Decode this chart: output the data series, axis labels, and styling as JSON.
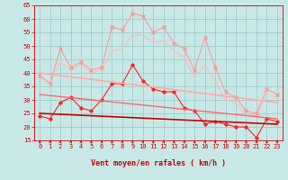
{
  "xlabel": "Vent moyen/en rafales ( km/h )",
  "xlim": [
    -0.5,
    23.5
  ],
  "ylim": [
    15,
    65
  ],
  "yticks": [
    15,
    20,
    25,
    30,
    35,
    40,
    45,
    50,
    55,
    60,
    65
  ],
  "xticks": [
    0,
    1,
    2,
    3,
    4,
    5,
    6,
    7,
    8,
    9,
    10,
    11,
    12,
    13,
    14,
    15,
    16,
    17,
    18,
    19,
    20,
    21,
    22,
    23
  ],
  "bg_color": "#c8e8e8",
  "grid_color": "#a0cccc",
  "series": [
    {
      "x": [
        0,
        1,
        2,
        3,
        4,
        5,
        6,
        7,
        8,
        9,
        10,
        11,
        12,
        13,
        14,
        15,
        16,
        17,
        18,
        19,
        20,
        21,
        22,
        23
      ],
      "y": [
        39,
        36,
        49,
        42,
        44,
        41,
        42,
        57,
        56,
        62,
        61,
        55,
        57,
        51,
        49,
        41,
        53,
        42,
        33,
        31,
        26,
        25,
        34,
        32
      ],
      "color": "#ff9999",
      "lw": 0.8,
      "marker": "x",
      "ms": 2.5,
      "zorder": 3
    },
    {
      "x": [
        0,
        1,
        2,
        3,
        4,
        5,
        6,
        7,
        8,
        9,
        10,
        11,
        12,
        13,
        14,
        15,
        16,
        17,
        18,
        19,
        20,
        21,
        22,
        23
      ],
      "y": [
        39,
        36,
        44,
        41,
        43,
        40,
        41,
        48,
        49,
        54,
        54,
        51,
        52,
        48,
        46,
        38,
        43,
        37,
        30,
        29,
        25,
        24,
        32,
        31
      ],
      "color": "#ffbbbb",
      "lw": 0.8,
      "marker": null,
      "ms": 0,
      "zorder": 2
    },
    {
      "x": [
        0,
        1,
        2,
        3,
        4,
        5,
        6,
        7,
        8,
        9,
        10,
        11,
        12,
        13,
        14,
        15,
        16,
        17,
        18,
        19,
        20,
        21,
        22,
        23
      ],
      "y": [
        24,
        23,
        29,
        31,
        27,
        26,
        30,
        36,
        36,
        43,
        37,
        34,
        33,
        33,
        27,
        26,
        21,
        22,
        21,
        20,
        20,
        16,
        23,
        22
      ],
      "color": "#ff2222",
      "lw": 0.8,
      "marker": "D",
      "ms": 1.8,
      "zorder": 4
    },
    {
      "x": [
        0,
        23
      ],
      "y": [
        25,
        21
      ],
      "color": "#cc0000",
      "lw": 1.2,
      "marker": null,
      "ms": 0,
      "linestyle": "-",
      "zorder": 5
    },
    {
      "x": [
        0,
        23
      ],
      "y": [
        40,
        29
      ],
      "color": "#ffaaaa",
      "lw": 1.2,
      "marker": null,
      "ms": 0,
      "linestyle": "-",
      "zorder": 5
    },
    {
      "x": [
        0,
        23
      ],
      "y": [
        32,
        23
      ],
      "color": "#ff6666",
      "lw": 1.0,
      "marker": null,
      "ms": 0,
      "linestyle": "-",
      "zorder": 5
    }
  ],
  "arrow_color": "#cc0000",
  "axis_fontsize": 5.5,
  "tick_fontsize": 5.0,
  "xlabel_fontsize": 6.0
}
